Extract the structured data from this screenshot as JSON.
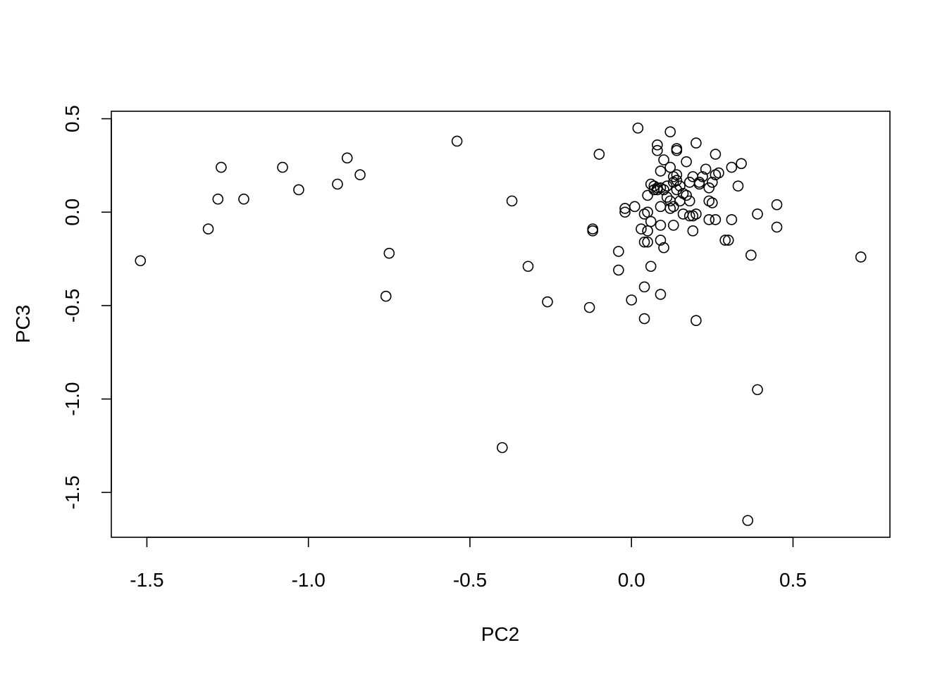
{
  "chart_data": {
    "type": "scatter",
    "title": "",
    "xlabel": "PC2",
    "ylabel": "PC3",
    "xlim": [
      -1.61,
      0.8
    ],
    "ylim": [
      -1.74,
      0.54
    ],
    "x_ticks": [
      -1.5,
      -1.0,
      -0.5,
      0.0,
      0.5
    ],
    "x_tick_labels": [
      "-1.5",
      "-1.0",
      "-0.5",
      "0.0",
      "0.5"
    ],
    "y_ticks": [
      -1.5,
      -1.0,
      -0.5,
      0.0,
      0.5
    ],
    "y_tick_labels": [
      "-1.5",
      "-1.0",
      "-0.5",
      "0.0",
      "0.5"
    ],
    "grid": false,
    "legend": "none",
    "marker": "open-circle",
    "points": [
      {
        "x": -1.52,
        "y": -0.26
      },
      {
        "x": -1.31,
        "y": -0.09
      },
      {
        "x": -1.28,
        "y": 0.07
      },
      {
        "x": -1.27,
        "y": 0.24
      },
      {
        "x": -1.2,
        "y": 0.07
      },
      {
        "x": -1.08,
        "y": 0.24
      },
      {
        "x": -1.03,
        "y": 0.12
      },
      {
        "x": -0.91,
        "y": 0.15
      },
      {
        "x": -0.88,
        "y": 0.29
      },
      {
        "x": -0.84,
        "y": 0.2
      },
      {
        "x": -0.76,
        "y": -0.45
      },
      {
        "x": -0.75,
        "y": -0.22
      },
      {
        "x": -0.54,
        "y": 0.38
      },
      {
        "x": -0.4,
        "y": -1.26
      },
      {
        "x": -0.37,
        "y": 0.06
      },
      {
        "x": -0.32,
        "y": -0.29
      },
      {
        "x": -0.26,
        "y": -0.48
      },
      {
        "x": -0.13,
        "y": -0.51
      },
      {
        "x": -0.12,
        "y": -0.1
      },
      {
        "x": -0.12,
        "y": -0.09
      },
      {
        "x": -0.1,
        "y": 0.31
      },
      {
        "x": -0.04,
        "y": -0.21
      },
      {
        "x": -0.04,
        "y": -0.31
      },
      {
        "x": -0.02,
        "y": 0.02
      },
      {
        "x": -0.02,
        "y": 0.0
      },
      {
        "x": 0.0,
        "y": -0.47
      },
      {
        "x": 0.01,
        "y": 0.03
      },
      {
        "x": 0.02,
        "y": 0.45
      },
      {
        "x": 0.03,
        "y": -0.09
      },
      {
        "x": 0.04,
        "y": -0.01
      },
      {
        "x": 0.04,
        "y": -0.16
      },
      {
        "x": 0.04,
        "y": -0.4
      },
      {
        "x": 0.04,
        "y": -0.57
      },
      {
        "x": 0.05,
        "y": 0.09
      },
      {
        "x": 0.05,
        "y": 0.0
      },
      {
        "x": 0.05,
        "y": -0.1
      },
      {
        "x": 0.05,
        "y": -0.16
      },
      {
        "x": 0.06,
        "y": 0.15
      },
      {
        "x": 0.06,
        "y": -0.05
      },
      {
        "x": 0.06,
        "y": -0.29
      },
      {
        "x": 0.07,
        "y": 0.14
      },
      {
        "x": 0.07,
        "y": 0.12
      },
      {
        "x": 0.08,
        "y": 0.36
      },
      {
        "x": 0.08,
        "y": 0.33
      },
      {
        "x": 0.08,
        "y": 0.13
      },
      {
        "x": 0.08,
        "y": 0.12
      },
      {
        "x": 0.09,
        "y": 0.03
      },
      {
        "x": 0.09,
        "y": 0.13
      },
      {
        "x": 0.09,
        "y": 0.22
      },
      {
        "x": 0.09,
        "y": -0.07
      },
      {
        "x": 0.09,
        "y": -0.15
      },
      {
        "x": 0.09,
        "y": -0.44
      },
      {
        "x": 0.1,
        "y": 0.28
      },
      {
        "x": 0.1,
        "y": 0.12
      },
      {
        "x": 0.1,
        "y": -0.19
      },
      {
        "x": 0.11,
        "y": 0.08
      },
      {
        "x": 0.11,
        "y": 0.14
      },
      {
        "x": 0.12,
        "y": 0.43
      },
      {
        "x": 0.12,
        "y": 0.24
      },
      {
        "x": 0.12,
        "y": 0.02
      },
      {
        "x": 0.12,
        "y": 0.06
      },
      {
        "x": 0.13,
        "y": 0.16
      },
      {
        "x": 0.13,
        "y": 0.19
      },
      {
        "x": 0.13,
        "y": 0.03
      },
      {
        "x": 0.13,
        "y": -0.07
      },
      {
        "x": 0.14,
        "y": 0.33
      },
      {
        "x": 0.14,
        "y": 0.34
      },
      {
        "x": 0.14,
        "y": 0.2
      },
      {
        "x": 0.14,
        "y": 0.17
      },
      {
        "x": 0.14,
        "y": 0.12
      },
      {
        "x": 0.15,
        "y": 0.06
      },
      {
        "x": 0.15,
        "y": 0.14
      },
      {
        "x": 0.16,
        "y": -0.01
      },
      {
        "x": 0.16,
        "y": 0.1
      },
      {
        "x": 0.17,
        "y": 0.27
      },
      {
        "x": 0.17,
        "y": 0.09
      },
      {
        "x": 0.18,
        "y": -0.02
      },
      {
        "x": 0.18,
        "y": 0.06
      },
      {
        "x": 0.18,
        "y": 0.16
      },
      {
        "x": 0.19,
        "y": 0.19
      },
      {
        "x": 0.19,
        "y": -0.02
      },
      {
        "x": 0.19,
        "y": -0.1
      },
      {
        "x": 0.2,
        "y": -0.01
      },
      {
        "x": 0.2,
        "y": 0.37
      },
      {
        "x": 0.2,
        "y": -0.58
      },
      {
        "x": 0.21,
        "y": 0.16
      },
      {
        "x": 0.21,
        "y": 0.15
      },
      {
        "x": 0.22,
        "y": 0.19
      },
      {
        "x": 0.23,
        "y": 0.23
      },
      {
        "x": 0.24,
        "y": 0.06
      },
      {
        "x": 0.24,
        "y": 0.13
      },
      {
        "x": 0.24,
        "y": -0.04
      },
      {
        "x": 0.25,
        "y": 0.16
      },
      {
        "x": 0.25,
        "y": 0.05
      },
      {
        "x": 0.26,
        "y": 0.31
      },
      {
        "x": 0.26,
        "y": 0.2
      },
      {
        "x": 0.26,
        "y": -0.04
      },
      {
        "x": 0.27,
        "y": 0.21
      },
      {
        "x": 0.29,
        "y": -0.15
      },
      {
        "x": 0.3,
        "y": -0.15
      },
      {
        "x": 0.31,
        "y": 0.24
      },
      {
        "x": 0.31,
        "y": -0.04
      },
      {
        "x": 0.33,
        "y": 0.14
      },
      {
        "x": 0.34,
        "y": 0.26
      },
      {
        "x": 0.36,
        "y": -1.65
      },
      {
        "x": 0.37,
        "y": -0.23
      },
      {
        "x": 0.39,
        "y": -0.01
      },
      {
        "x": 0.39,
        "y": -0.95
      },
      {
        "x": 0.45,
        "y": 0.04
      },
      {
        "x": 0.45,
        "y": -0.08
      },
      {
        "x": 0.71,
        "y": -0.24
      }
    ]
  }
}
